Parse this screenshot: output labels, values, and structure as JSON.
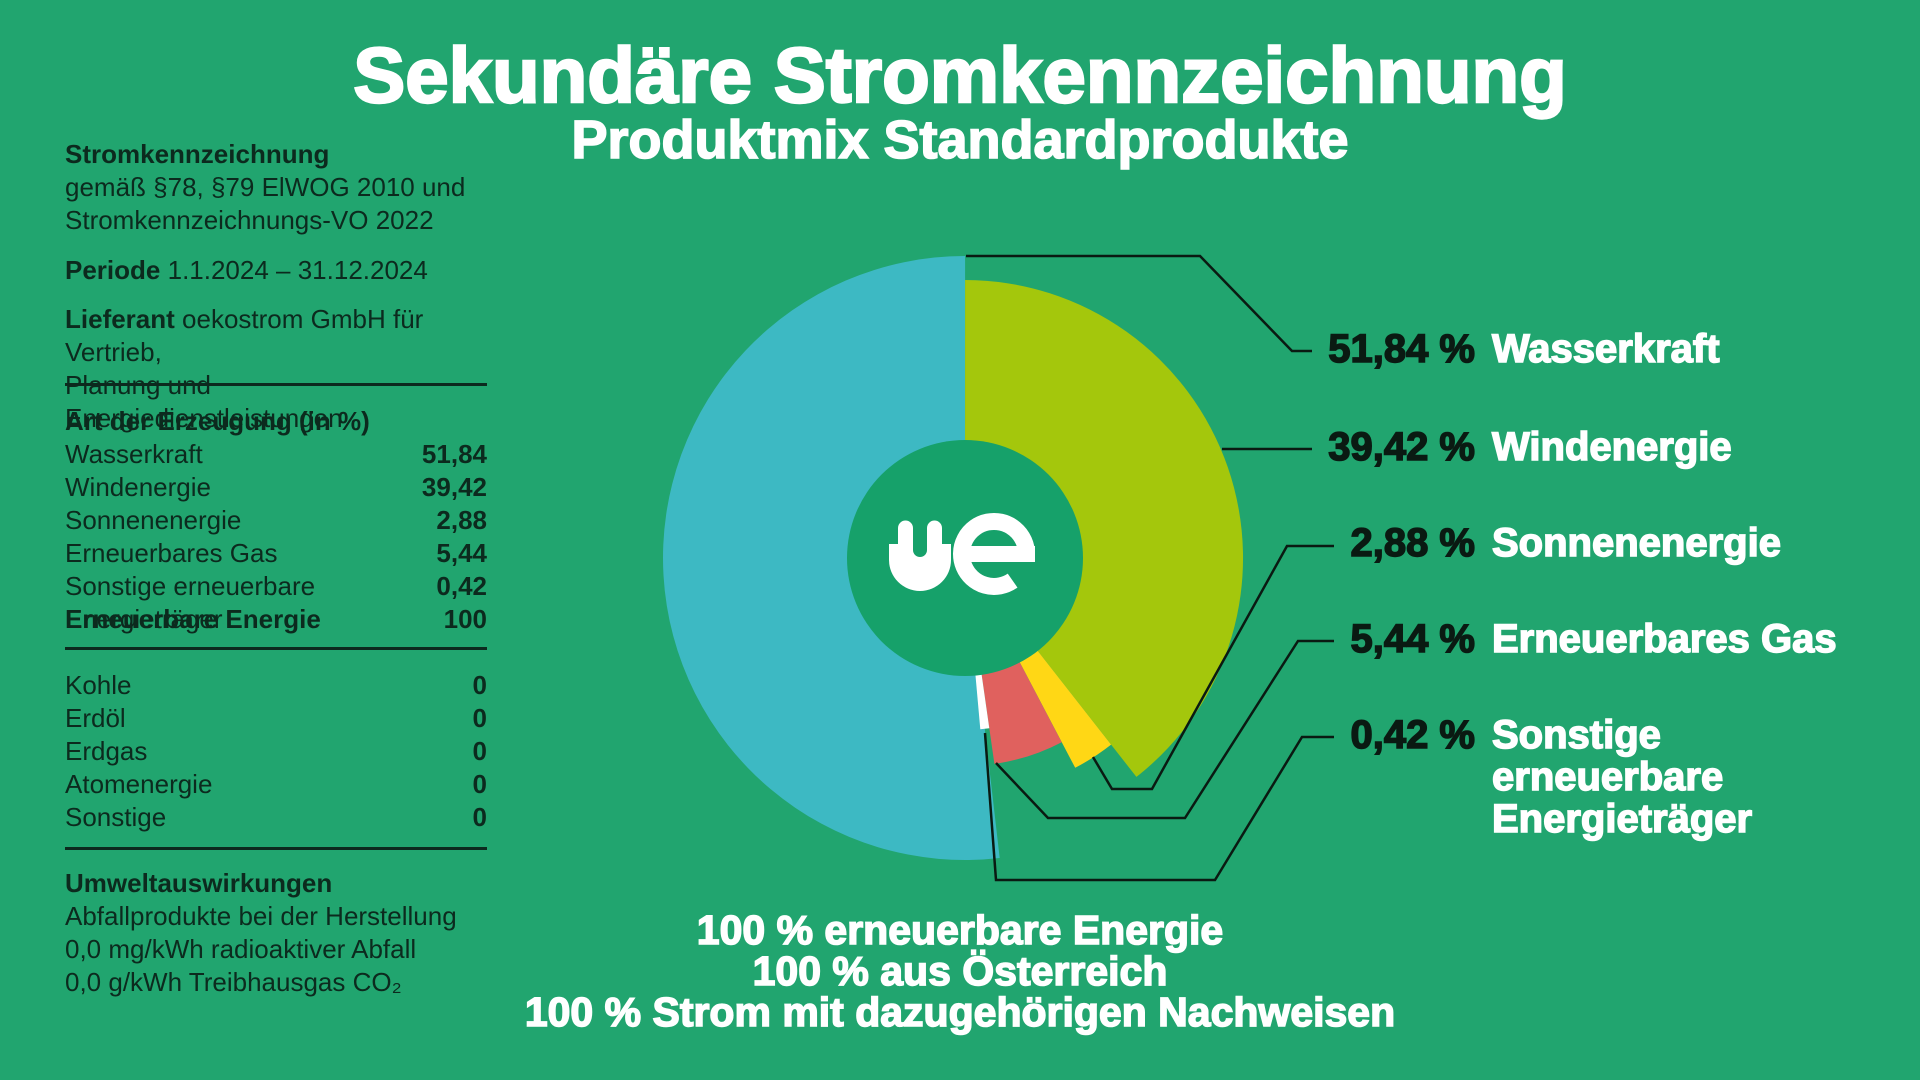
{
  "title": "Sekundäre Stromkennzeichnung",
  "subtitle": "Produktmix Standardprodukte",
  "info_panel": {
    "heading": "Stromkennzeichnung",
    "law_line1": "gemäß §78, §79 ElWOG 2010 und",
    "law_line2": "Stromkennzeichnungs-VO 2022",
    "periode_label": "Periode",
    "periode_value": "1.1.2024 – 31.12.2024",
    "lieferant_label": "Lieferant",
    "lieferant_line1": "oekostrom GmbH für Vertrieb,",
    "lieferant_line2": "Planung und Energiedienstleistungen",
    "erzeugung": {
      "heading": "Art der Erzeugung (in %)",
      "rows": [
        {
          "label": "Wasserkraft",
          "value": "51,84"
        },
        {
          "label": "Windenergie",
          "value": "39,42"
        },
        {
          "label": "Sonnenenergie",
          "value": "2,88"
        },
        {
          "label": "Erneuerbares Gas",
          "value": "5,44"
        },
        {
          "label": "Sonstige erneuerbare Energieträger",
          "value": "0,42"
        },
        {
          "label": "Erneuerbare Energie",
          "value": "100"
        }
      ]
    },
    "fossil_rows": [
      {
        "label": "Kohle",
        "value": "0"
      },
      {
        "label": "Erdöl",
        "value": "0"
      },
      {
        "label": "Erdgas",
        "value": "0"
      },
      {
        "label": "Atomenergie",
        "value": "0"
      },
      {
        "label": "Sonstige",
        "value": "0"
      }
    ],
    "umwelt": {
      "heading": "Umweltauswirkungen",
      "line1": "Abfallprodukte bei der Herstellung",
      "line2": "0,0 mg/kWh radioaktiver Abfall",
      "line3": "0,0 g/kWh Treibhausgas CO₂"
    }
  },
  "callouts": [
    {
      "value": "51,84 %",
      "label": "Wasserkraft"
    },
    {
      "value": "39,42 %",
      "label": "Windenergie"
    },
    {
      "value": "2,88 %",
      "label": "Sonnenenergie"
    },
    {
      "value": "5,44 %",
      "label": "Erneuerbares Gas"
    },
    {
      "value": "0,42 %",
      "label": "Sonstige\nerneuerbare\nEnergieträger"
    }
  ],
  "footer_lines": [
    "100 % erneuerbare Energie",
    "100 % aus Österreich",
    "100 % Strom mit dazugehörigen Nachweisen"
  ],
  "colors": {
    "background": "#21A56F",
    "hole_green": "#16A16A",
    "dark_text": "#0C2A1E",
    "callout_number": "#0A1A12",
    "white": "#FFFFFF"
  },
  "chart_data": {
    "type": "pie",
    "title": "Produktmix Standardprodukte",
    "unit": "%",
    "start_angle_deg": 173.4,
    "legend_position": "right",
    "slices": [
      {
        "id": "wasserkraft",
        "label": "Wasserkraft",
        "value": 51.84,
        "color": "#3DB9C3",
        "outer_radius": 302
      },
      {
        "id": "windenergie",
        "label": "Windenergie",
        "value": 39.42,
        "color": "#A4C70C",
        "outer_radius": 278
      },
      {
        "id": "sonnenenergie",
        "label": "Sonnenenergie",
        "value": 2.88,
        "color": "#FFD715",
        "outer_radius": 237
      },
      {
        "id": "erneuerbares-gas",
        "label": "Erneuerbares Gas",
        "value": 5.44,
        "color": "#E0615E",
        "outer_radius": 208
      },
      {
        "id": "sonstige",
        "label": "Sonstige erneuerbare Energieträger",
        "value": 0.42,
        "color": "#FFFFFF",
        "outer_radius": 172,
        "min_sweep_deg": 3
      }
    ],
    "hole": {
      "radius": 118,
      "color": "#16A16A"
    }
  }
}
